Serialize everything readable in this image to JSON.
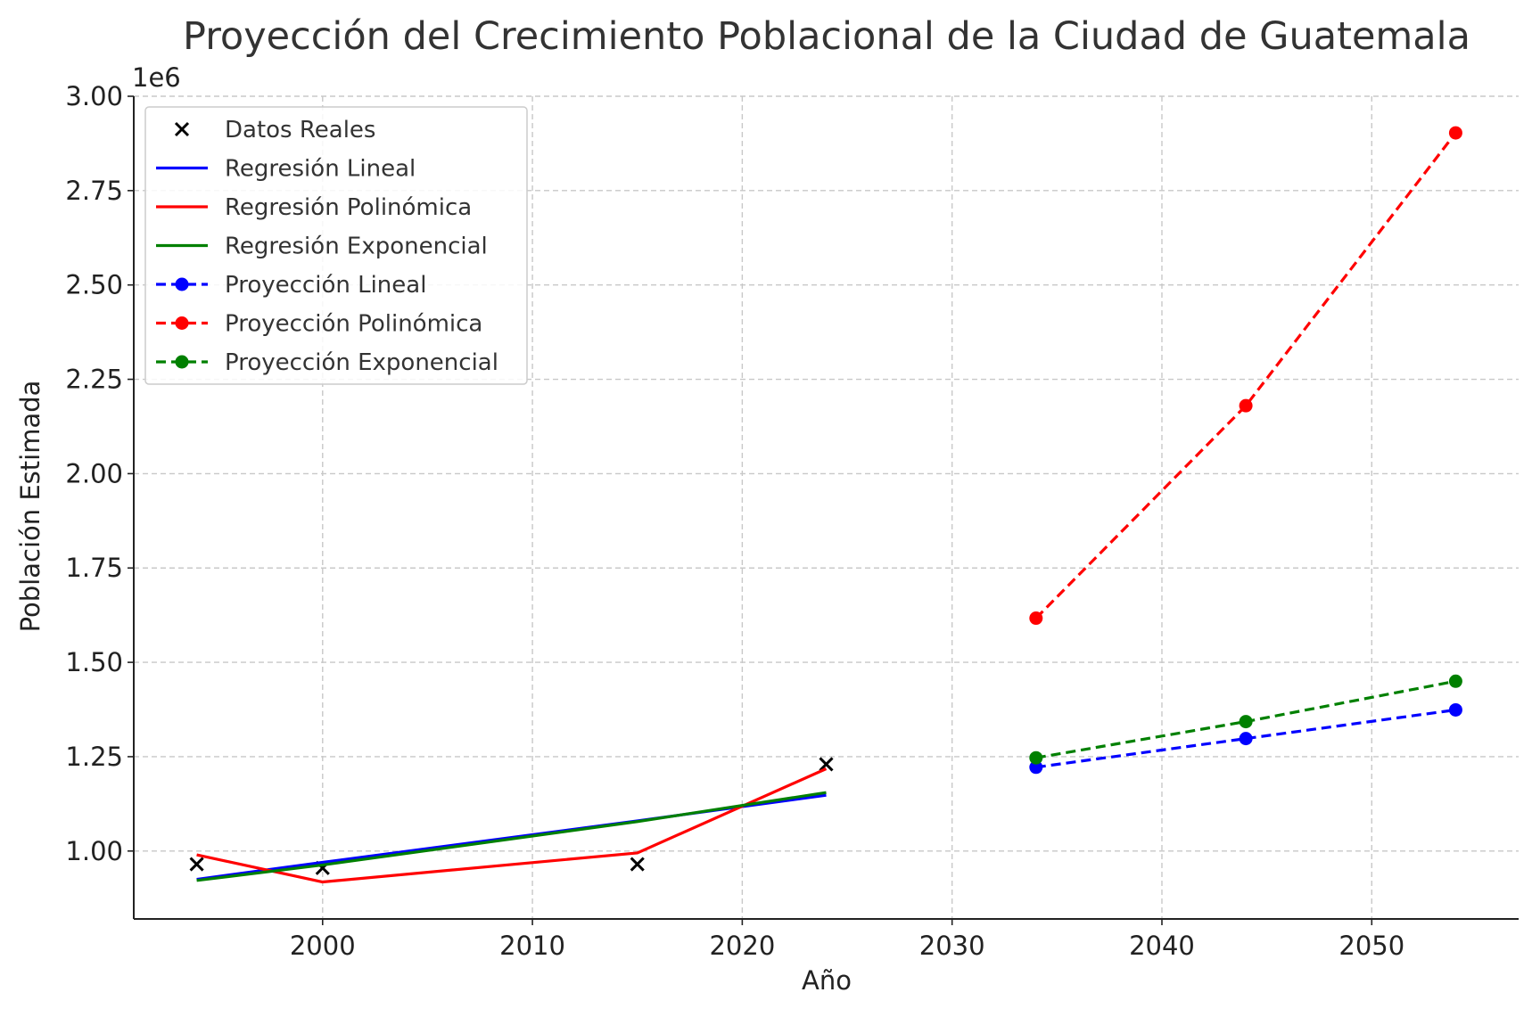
{
  "chart_data": {
    "type": "line",
    "title": "Proyección del Crecimiento Poblacional de la Ciudad de Guatemala",
    "xlabel": "Año",
    "ylabel": "Población Estimada",
    "y_offset_label": "1e6",
    "xlim": [
      1991,
      2057
    ],
    "ylim": [
      820000,
      3000000
    ],
    "x_ticks": [
      2000,
      2010,
      2020,
      2030,
      2040,
      2050
    ],
    "y_ticks": [
      1000000,
      1250000,
      1500000,
      1750000,
      2000000,
      2250000,
      2500000,
      2750000,
      3000000
    ],
    "y_tick_labels": [
      "1.00",
      "1.25",
      "1.50",
      "1.75",
      "2.00",
      "2.25",
      "2.50",
      "2.75",
      "3.00"
    ],
    "grid": true,
    "legend_position": "top-left",
    "series": [
      {
        "name": "Datos Reales",
        "kind": "scatter",
        "marker": "x",
        "color": "#000000",
        "points": [
          [
            1994,
            965000
          ],
          [
            2000,
            955000
          ],
          [
            2015,
            965000
          ],
          [
            2024,
            1230000
          ]
        ]
      },
      {
        "name": "Regresión Lineal",
        "kind": "line",
        "color": "#0000ff",
        "points": [
          [
            1994,
            925000
          ],
          [
            2000,
            970000
          ],
          [
            2015,
            1080000
          ],
          [
            2024,
            1148000
          ]
        ]
      },
      {
        "name": "Regresión Polinómica",
        "kind": "line",
        "color": "#ff0000",
        "points": [
          [
            1994,
            990000
          ],
          [
            2000,
            918000
          ],
          [
            2015,
            995000
          ],
          [
            2024,
            1218000
          ]
        ]
      },
      {
        "name": "Regresión Exponencial",
        "kind": "line",
        "color": "#008000",
        "points": [
          [
            1994,
            922000
          ],
          [
            2000,
            963000
          ],
          [
            2015,
            1078000
          ],
          [
            2024,
            1155000
          ]
        ]
      },
      {
        "name": "Proyección Lineal",
        "kind": "projection",
        "color": "#0000ff",
        "points": [
          [
            2034,
            1222000
          ],
          [
            2044,
            1298000
          ],
          [
            2054,
            1374000
          ]
        ]
      },
      {
        "name": "Proyección Polinómica",
        "kind": "projection",
        "color": "#ff0000",
        "points": [
          [
            2034,
            1617000
          ],
          [
            2044,
            2180000
          ],
          [
            2054,
            2903000
          ]
        ]
      },
      {
        "name": "Proyección Exponencial",
        "kind": "projection",
        "color": "#008000",
        "points": [
          [
            2034,
            1247000
          ],
          [
            2044,
            1343000
          ],
          [
            2054,
            1450000
          ]
        ]
      }
    ]
  }
}
